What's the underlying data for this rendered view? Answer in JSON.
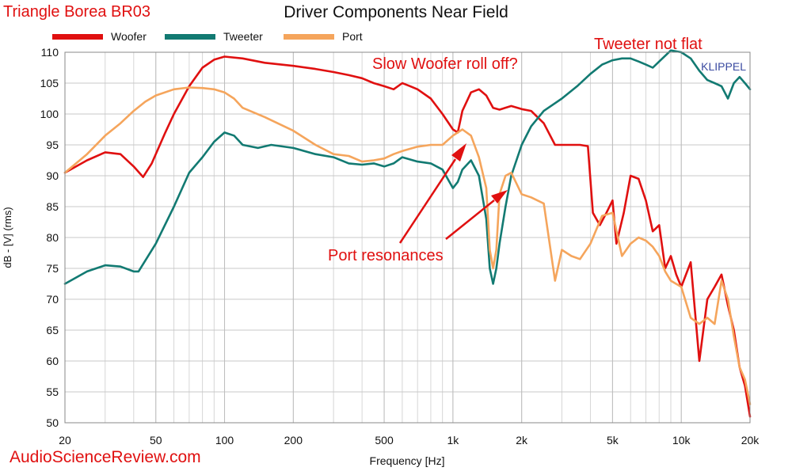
{
  "header": {
    "brand": "Triangle Borea BR03",
    "watermark": "AudioScienceReview.com"
  },
  "colors": {
    "accent_red": "#e01010",
    "grid": "#c8c8c8",
    "text": "#111111"
  },
  "chart_data": {
    "type": "line",
    "title": "Driver Components Near Field",
    "xlabel": "Frequency [Hz]",
    "ylabel": "dB - [V] (rms)",
    "x_scale": "log",
    "xlim": [
      20,
      20000
    ],
    "ylim": [
      50,
      110
    ],
    "x_ticks": [
      {
        "value": 20,
        "label": "20"
      },
      {
        "value": 50,
        "label": "50"
      },
      {
        "value": 100,
        "label": "100"
      },
      {
        "value": 200,
        "label": "200"
      },
      {
        "value": 500,
        "label": "500"
      },
      {
        "value": 1000,
        "label": "1k"
      },
      {
        "value": 2000,
        "label": "2k"
      },
      {
        "value": 5000,
        "label": "5k"
      },
      {
        "value": 10000,
        "label": "10k"
      },
      {
        "value": 20000,
        "label": "20k"
      }
    ],
    "y_ticks": [
      50,
      55,
      60,
      65,
      70,
      75,
      80,
      85,
      90,
      95,
      100,
      105,
      110
    ],
    "grid": true,
    "legend_position": "top-left",
    "watermark": "KLIPPEL",
    "series": [
      {
        "name": "Woofer",
        "color": "#e01010",
        "points": [
          [
            20,
            90.5
          ],
          [
            25,
            92.5
          ],
          [
            30,
            93.8
          ],
          [
            35,
            93.5
          ],
          [
            40,
            91.5
          ],
          [
            44,
            89.8
          ],
          [
            48,
            92
          ],
          [
            55,
            97
          ],
          [
            60,
            100
          ],
          [
            70,
            104.5
          ],
          [
            80,
            107.5
          ],
          [
            90,
            108.8
          ],
          [
            100,
            109.3
          ],
          [
            120,
            109
          ],
          [
            150,
            108.3
          ],
          [
            200,
            107.8
          ],
          [
            250,
            107.3
          ],
          [
            300,
            106.8
          ],
          [
            350,
            106.3
          ],
          [
            400,
            105.8
          ],
          [
            450,
            105
          ],
          [
            500,
            104.5
          ],
          [
            550,
            104
          ],
          [
            600,
            105
          ],
          [
            650,
            104.5
          ],
          [
            700,
            104
          ],
          [
            800,
            102.5
          ],
          [
            900,
            100
          ],
          [
            1000,
            97.5
          ],
          [
            1050,
            97
          ],
          [
            1100,
            100.5
          ],
          [
            1200,
            103.5
          ],
          [
            1300,
            104
          ],
          [
            1400,
            103
          ],
          [
            1500,
            101
          ],
          [
            1600,
            100.7
          ],
          [
            1800,
            101.3
          ],
          [
            2000,
            100.8
          ],
          [
            2200,
            100.5
          ],
          [
            2500,
            98.5
          ],
          [
            2800,
            95
          ],
          [
            3200,
            95
          ],
          [
            3600,
            95
          ],
          [
            3900,
            94.8
          ],
          [
            4100,
            84
          ],
          [
            4400,
            82
          ],
          [
            4700,
            84
          ],
          [
            5000,
            86
          ],
          [
            5200,
            79
          ],
          [
            5600,
            84
          ],
          [
            6000,
            90
          ],
          [
            6500,
            89.5
          ],
          [
            7000,
            86
          ],
          [
            7500,
            81
          ],
          [
            8000,
            82
          ],
          [
            8500,
            75
          ],
          [
            9000,
            77
          ],
          [
            9500,
            74
          ],
          [
            10000,
            72
          ],
          [
            11000,
            76
          ],
          [
            12000,
            60
          ],
          [
            13000,
            70
          ],
          [
            14000,
            72
          ],
          [
            15000,
            74
          ],
          [
            16000,
            69
          ],
          [
            17000,
            65
          ],
          [
            18000,
            59
          ],
          [
            19000,
            56
          ],
          [
            20000,
            51
          ]
        ]
      },
      {
        "name": "Tweeter",
        "color": "#127a72",
        "points": [
          [
            20,
            72.5
          ],
          [
            25,
            74.5
          ],
          [
            30,
            75.5
          ],
          [
            35,
            75.3
          ],
          [
            40,
            74.5
          ],
          [
            42,
            74.5
          ],
          [
            50,
            79
          ],
          [
            60,
            85
          ],
          [
            70,
            90.5
          ],
          [
            80,
            93
          ],
          [
            90,
            95.5
          ],
          [
            100,
            97
          ],
          [
            110,
            96.5
          ],
          [
            120,
            95
          ],
          [
            140,
            94.5
          ],
          [
            160,
            95
          ],
          [
            200,
            94.5
          ],
          [
            250,
            93.5
          ],
          [
            300,
            93
          ],
          [
            350,
            92
          ],
          [
            400,
            91.8
          ],
          [
            450,
            92
          ],
          [
            500,
            91.5
          ],
          [
            550,
            92
          ],
          [
            600,
            93
          ],
          [
            700,
            92.3
          ],
          [
            800,
            92
          ],
          [
            900,
            91
          ],
          [
            1000,
            88
          ],
          [
            1050,
            89
          ],
          [
            1100,
            91
          ],
          [
            1200,
            92.5
          ],
          [
            1300,
            90
          ],
          [
            1400,
            83
          ],
          [
            1450,
            75
          ],
          [
            1500,
            72.5
          ],
          [
            1550,
            75
          ],
          [
            1600,
            79
          ],
          [
            1700,
            85
          ],
          [
            1800,
            90
          ],
          [
            2000,
            95
          ],
          [
            2200,
            98
          ],
          [
            2500,
            100.5
          ],
          [
            3000,
            102.5
          ],
          [
            3500,
            104.5
          ],
          [
            4000,
            106.5
          ],
          [
            4500,
            108
          ],
          [
            5000,
            108.7
          ],
          [
            5500,
            109
          ],
          [
            6000,
            109
          ],
          [
            6500,
            108.5
          ],
          [
            7000,
            108
          ],
          [
            7500,
            107.5
          ],
          [
            8000,
            108.5
          ],
          [
            9000,
            110.3
          ],
          [
            10000,
            110
          ],
          [
            11000,
            109
          ],
          [
            12000,
            107
          ],
          [
            13000,
            105.5
          ],
          [
            14000,
            105
          ],
          [
            15000,
            104.5
          ],
          [
            16000,
            102.5
          ],
          [
            17000,
            105
          ],
          [
            18000,
            106
          ],
          [
            19000,
            105
          ],
          [
            20000,
            104
          ]
        ]
      },
      {
        "name": "Port",
        "color": "#f5a55c",
        "points": [
          [
            20,
            90.5
          ],
          [
            25,
            93.5
          ],
          [
            30,
            96.5
          ],
          [
            35,
            98.5
          ],
          [
            40,
            100.5
          ],
          [
            45,
            102
          ],
          [
            50,
            103
          ],
          [
            60,
            104
          ],
          [
            70,
            104.3
          ],
          [
            80,
            104.2
          ],
          [
            90,
            104
          ],
          [
            100,
            103.5
          ],
          [
            110,
            102.5
          ],
          [
            120,
            101
          ],
          [
            150,
            99.5
          ],
          [
            200,
            97.3
          ],
          [
            250,
            95
          ],
          [
            300,
            93.5
          ],
          [
            350,
            93.2
          ],
          [
            400,
            92.3
          ],
          [
            450,
            92.5
          ],
          [
            500,
            92.8
          ],
          [
            550,
            93.5
          ],
          [
            600,
            94
          ],
          [
            700,
            94.7
          ],
          [
            800,
            95
          ],
          [
            900,
            95
          ],
          [
            1000,
            96.5
          ],
          [
            1100,
            97.5
          ],
          [
            1200,
            96.5
          ],
          [
            1300,
            93
          ],
          [
            1400,
            88
          ],
          [
            1450,
            78
          ],
          [
            1500,
            75
          ],
          [
            1550,
            78
          ],
          [
            1600,
            87
          ],
          [
            1700,
            90
          ],
          [
            1800,
            90.5
          ],
          [
            2000,
            87
          ],
          [
            2200,
            86.5
          ],
          [
            2500,
            85.5
          ],
          [
            2800,
            73
          ],
          [
            3000,
            78
          ],
          [
            3300,
            77
          ],
          [
            3600,
            76.5
          ],
          [
            4000,
            79
          ],
          [
            4500,
            83.5
          ],
          [
            5000,
            84
          ],
          [
            5500,
            77
          ],
          [
            6000,
            79
          ],
          [
            6500,
            80
          ],
          [
            7000,
            79.5
          ],
          [
            7500,
            78.5
          ],
          [
            8000,
            77
          ],
          [
            8500,
            74.5
          ],
          [
            9000,
            73
          ],
          [
            10000,
            72
          ],
          [
            11000,
            67
          ],
          [
            12000,
            66
          ],
          [
            13000,
            67
          ],
          [
            14000,
            66
          ],
          [
            15000,
            73
          ],
          [
            16000,
            70
          ],
          [
            17000,
            64
          ],
          [
            18000,
            59
          ],
          [
            19000,
            57
          ],
          [
            20000,
            53
          ]
        ]
      }
    ],
    "annotations": [
      {
        "text": "Slow Woofer roll off?"
      },
      {
        "text": "Tweeter not flat"
      },
      {
        "text": "Port resonances"
      }
    ]
  }
}
